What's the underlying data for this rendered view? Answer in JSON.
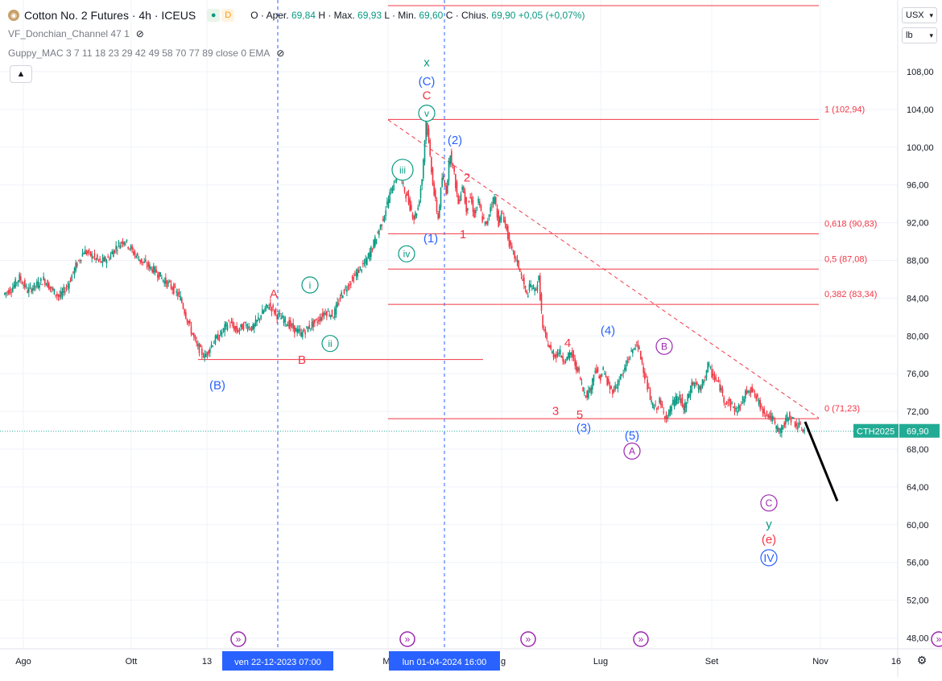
{
  "header": {
    "title": "Cotton No. 2 Futures · 4h · ICEUS",
    "badge_d": "D",
    "ohlc": {
      "open_label": "O",
      "open_text": "Aper.",
      "open": "69,84",
      "high_label": "H",
      "high_text": "Max.",
      "high": "69,93",
      "low_label": "L",
      "low_text": "Min.",
      "low": "69,60",
      "close_label": "C",
      "close_text": "Chius.",
      "close": "69,90",
      "change": "+0,05 (+0,07%)"
    }
  },
  "indicators": [
    {
      "name": "VF_Donchian_Channel 47 1"
    },
    {
      "name": "Guppy_MAC 3 7 11 18 23 29 42 49 58 70 77 89 close 0 EMA"
    }
  ],
  "units": {
    "currency": "USX",
    "unit": "lb"
  },
  "colors": {
    "up": "#089981",
    "down": "#f23645",
    "fib": "#f23645",
    "blue_wave": "#2962ff",
    "green_wave": "#089981",
    "purple_wave": "#9c27b0",
    "price_label_bg": "#22ab94"
  },
  "chart_data": {
    "type": "candlestick",
    "y_axis": {
      "ylim": [
        47,
        113
      ],
      "ticks": [
        "108,00",
        "104,00",
        "100,00",
        "96,00",
        "92,00",
        "88,00",
        "84,00",
        "80,00",
        "76,00",
        "72,00",
        "68,00",
        "64,00",
        "60,00",
        "56,00",
        "52,00",
        "48,00"
      ],
      "tick_values": [
        108,
        104,
        100,
        96,
        92,
        88,
        84,
        80,
        76,
        72,
        68,
        64,
        60,
        56,
        52,
        48
      ]
    },
    "x_axis": {
      "labels": [
        "Ago",
        "Ott",
        "13",
        "M",
        "g",
        "Lug",
        "Set",
        "Nov",
        "16"
      ]
    },
    "crosshair_labels": [
      "ven 22-12-2023   07:00",
      "lun 01-04-2024   16:00"
    ],
    "last_price": {
      "symbol": "CTH2025",
      "value": "69,90",
      "y": 69.9
    },
    "price_path": [
      [
        0,
        84.4
      ],
      [
        2,
        85
      ],
      [
        4,
        86.2
      ],
      [
        6,
        84.8
      ],
      [
        8,
        85.3
      ],
      [
        10,
        86
      ],
      [
        12,
        84.9
      ],
      [
        14,
        84.1
      ],
      [
        16,
        85.4
      ],
      [
        18,
        87.4
      ],
      [
        20,
        89
      ],
      [
        22,
        88.5
      ],
      [
        24,
        87.8
      ],
      [
        26,
        88.2
      ],
      [
        28,
        89.4
      ],
      [
        30,
        90.2
      ],
      [
        32,
        89
      ],
      [
        34,
        88
      ],
      [
        36,
        87.4
      ],
      [
        38,
        86.8
      ],
      [
        40,
        85.8
      ],
      [
        42,
        85.1
      ],
      [
        44,
        84
      ],
      [
        46,
        81.3
      ],
      [
        48,
        79
      ],
      [
        50,
        77.8
      ],
      [
        52,
        79.3
      ],
      [
        54,
        80.2
      ],
      [
        56,
        81.5
      ],
      [
        58,
        80.5
      ],
      [
        60,
        81.2
      ],
      [
        62,
        80.8
      ],
      [
        64,
        82.3
      ],
      [
        66,
        83.3
      ],
      [
        68,
        82.2
      ],
      [
        70,
        81.6
      ],
      [
        72,
        80.8
      ],
      [
        74,
        80.2
      ],
      [
        76,
        81
      ],
      [
        78,
        81.6
      ],
      [
        80,
        82.6
      ],
      [
        82,
        82.2
      ],
      [
        84,
        84.4
      ],
      [
        86,
        85.6
      ],
      [
        88,
        86.8
      ],
      [
        90,
        87.8
      ],
      [
        92,
        89.8
      ],
      [
        94,
        92
      ],
      [
        96,
        95
      ],
      [
        98,
        97.5
      ],
      [
        100,
        95
      ],
      [
        102,
        92.5
      ],
      [
        103,
        93.6
      ],
      [
        104,
        96.7
      ],
      [
        105,
        102.9
      ],
      [
        106,
        99
      ],
      [
        107,
        95
      ],
      [
        108,
        92.5
      ],
      [
        109,
        96.8
      ],
      [
        110,
        95.4
      ],
      [
        111,
        99.5
      ],
      [
        112,
        97
      ],
      [
        113,
        94
      ],
      [
        114,
        96
      ],
      [
        115,
        93.5
      ],
      [
        116,
        94.7
      ],
      [
        117,
        92.8
      ],
      [
        118,
        94.2
      ],
      [
        119,
        92.4
      ],
      [
        120,
        91.6
      ],
      [
        121,
        93.8
      ],
      [
        122,
        94.7
      ],
      [
        123,
        92
      ],
      [
        124,
        93
      ],
      [
        125,
        91.2
      ],
      [
        126,
        89.2
      ],
      [
        127,
        88.4
      ],
      [
        128,
        87.4
      ],
      [
        129,
        85.8
      ],
      [
        130,
        84.3
      ],
      [
        131,
        85.4
      ],
      [
        132,
        84.8
      ],
      [
        133,
        86
      ],
      [
        134,
        80.7
      ],
      [
        135,
        79.5
      ],
      [
        136,
        78.4
      ],
      [
        137,
        77.9
      ],
      [
        138,
        78.4
      ],
      [
        139,
        77.6
      ],
      [
        140,
        77.6
      ],
      [
        141,
        78.2
      ],
      [
        142,
        77
      ],
      [
        143,
        76
      ],
      [
        144,
        74.2
      ],
      [
        145,
        73.8
      ],
      [
        146,
        74.6
      ],
      [
        147,
        76.7
      ],
      [
        148,
        75.4
      ],
      [
        149,
        76.4
      ],
      [
        150,
        75
      ],
      [
        151,
        74.2
      ],
      [
        152,
        74.5
      ],
      [
        153,
        75.5
      ],
      [
        154,
        76
      ],
      [
        155,
        77.4
      ],
      [
        156,
        78.2
      ],
      [
        157,
        79.1
      ],
      [
        158,
        78.4
      ],
      [
        159,
        76.5
      ],
      [
        160,
        74.6
      ],
      [
        161,
        72.8
      ],
      [
        162,
        72.3
      ],
      [
        163,
        73
      ],
      [
        164,
        71.8
      ],
      [
        165,
        71.4
      ],
      [
        166,
        72.6
      ],
      [
        167,
        73.2
      ],
      [
        168,
        73.5
      ],
      [
        169,
        72.1
      ],
      [
        170,
        73.4
      ],
      [
        171,
        74.9
      ],
      [
        172,
        75
      ],
      [
        173,
        74.1
      ],
      [
        174,
        75.4
      ],
      [
        175,
        76.9
      ],
      [
        176,
        76
      ],
      [
        177,
        75.3
      ],
      [
        178,
        74.6
      ],
      [
        179,
        73.3
      ],
      [
        180,
        73
      ],
      [
        181,
        72.6
      ],
      [
        182,
        72.1
      ],
      [
        183,
        72.5
      ],
      [
        184,
        73.5
      ],
      [
        185,
        74.5
      ],
      [
        186,
        74.2
      ],
      [
        187,
        73.4
      ],
      [
        188,
        72.6
      ],
      [
        189,
        72
      ],
      [
        190,
        71.6
      ],
      [
        191,
        71.2
      ],
      [
        192,
        70.2
      ],
      [
        193,
        70
      ],
      [
        194,
        70.6
      ],
      [
        195,
        71.6
      ],
      [
        196,
        71.1
      ],
      [
        197,
        70.6
      ],
      [
        198,
        70.3
      ],
      [
        199,
        69.9
      ]
    ],
    "projection": [
      [
        199,
        70.9
      ],
      [
        207,
        62.5
      ]
    ],
    "fib_levels": [
      {
        "label": "1 (102,94)",
        "y": 102.94
      },
      {
        "label": "0,618 (90,83)",
        "y": 90.83
      },
      {
        "label": "0,5 (87,08)",
        "y": 87.08
      },
      {
        "label": "0,382 (83,34)",
        "y": 83.34
      },
      {
        "label": "0 (71,23)",
        "y": 71.23
      }
    ],
    "support_line_y": 77.5,
    "trend_line": [
      [
        105,
        102.9
      ],
      [
        247,
        71.3
      ]
    ],
    "top_line_y": 110.5,
    "wave_labels": [
      {
        "t": "x",
        "x": 105,
        "y": 109,
        "color": "green"
      },
      {
        "t": "(C)",
        "x": 105,
        "y": 107,
        "color": "blue"
      },
      {
        "t": "C",
        "x": 105,
        "y": 105.5,
        "color": "red"
      },
      {
        "t": "v",
        "x": 105,
        "y": 103.6,
        "color": "green",
        "circle": true
      },
      {
        "t": "(2)",
        "x": 112,
        "y": 100.8,
        "color": "blue"
      },
      {
        "t": "iii",
        "x": 99,
        "y": 97.6,
        "color": "green",
        "circle": true
      },
      {
        "t": "2",
        "x": 115,
        "y": 96.8,
        "color": "red"
      },
      {
        "t": "(1)",
        "x": 106,
        "y": 90.4,
        "color": "blue"
      },
      {
        "t": "1",
        "x": 114,
        "y": 90.8,
        "color": "red"
      },
      {
        "t": "iv",
        "x": 100,
        "y": 88.7,
        "color": "green",
        "circle": true
      },
      {
        "t": "i",
        "x": 76,
        "y": 85.4,
        "color": "green",
        "circle": true
      },
      {
        "t": "A",
        "x": 67,
        "y": 84.5,
        "color": "red"
      },
      {
        "t": "ii",
        "x": 81,
        "y": 79.2,
        "color": "green",
        "circle": true
      },
      {
        "t": "B",
        "x": 74,
        "y": 77.5,
        "color": "red"
      },
      {
        "t": "(B)",
        "x": 53,
        "y": 74.8,
        "color": "blue"
      },
      {
        "t": "4",
        "x": 140,
        "y": 79.3,
        "color": "red"
      },
      {
        "t": "(4)",
        "x": 150,
        "y": 80.6,
        "color": "blue"
      },
      {
        "t": "B",
        "x": 164,
        "y": 78.9,
        "color": "purple",
        "circle": true
      },
      {
        "t": "3",
        "x": 137,
        "y": 72.1,
        "color": "red"
      },
      {
        "t": "5",
        "x": 143,
        "y": 71.7,
        "color": "red"
      },
      {
        "t": "(3)",
        "x": 144,
        "y": 70.3,
        "color": "blue"
      },
      {
        "t": "(5)",
        "x": 156,
        "y": 69.5,
        "color": "blue"
      },
      {
        "t": "A",
        "x": 156,
        "y": 67.8,
        "color": "purple",
        "circle": true
      },
      {
        "t": "C",
        "x": 190,
        "y": 62.3,
        "color": "purple",
        "circle": true
      },
      {
        "t": "y",
        "x": 190,
        "y": 60.1,
        "color": "green"
      },
      {
        "t": "(e)",
        "x": 190,
        "y": 58.5,
        "color": "red"
      },
      {
        "t": "IV",
        "x": 190,
        "y": 56.5,
        "color": "blue",
        "circle": true
      }
    ],
    "timeline_markers": [
      57,
      99,
      129,
      157,
      231
    ]
  }
}
